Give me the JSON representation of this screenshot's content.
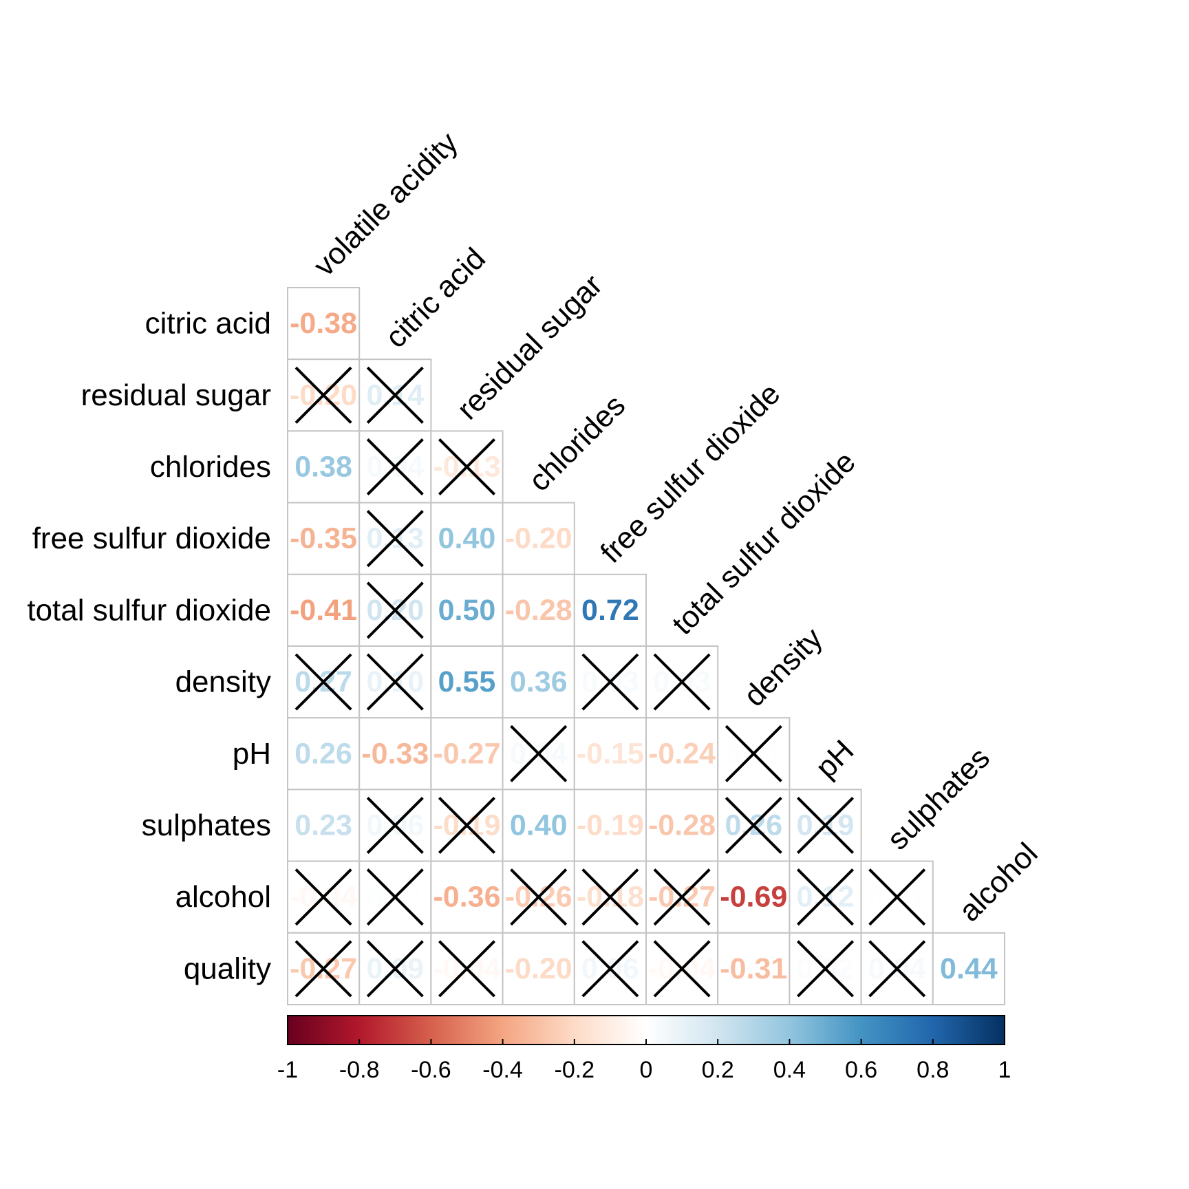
{
  "chart_data": {
    "type": "heatmap",
    "style": "lower-triangle correlation matrix",
    "columns": [
      "volatile acidity",
      "citric acid",
      "residual sugar",
      "chlorides",
      "free sulfur dioxide",
      "total sulfur dioxide",
      "density",
      "pH",
      "sulphates",
      "alcohol"
    ],
    "rows": [
      "citric acid",
      "residual sugar",
      "chlorides",
      "free sulfur dioxide",
      "total sulfur dioxide",
      "density",
      "pH",
      "sulphates",
      "alcohol",
      "quality"
    ],
    "cells": [
      [
        {
          "v": -0.38,
          "x": false
        }
      ],
      [
        {
          "v": -0.2,
          "x": true
        },
        {
          "v": 0.14,
          "x": true
        }
      ],
      [
        {
          "v": 0.38,
          "x": false
        },
        {
          "v": 0.04,
          "x": true
        },
        {
          "v": -0.13,
          "x": true
        }
      ],
      [
        {
          "v": -0.35,
          "x": false
        },
        {
          "v": 0.13,
          "x": true
        },
        {
          "v": 0.4,
          "x": false
        },
        {
          "v": -0.2,
          "x": false
        }
      ],
      [
        {
          "v": -0.41,
          "x": false
        },
        {
          "v": 0.2,
          "x": true
        },
        {
          "v": 0.5,
          "x": false
        },
        {
          "v": -0.28,
          "x": false
        },
        {
          "v": 0.72,
          "x": false
        }
      ],
      [
        {
          "v": 0.27,
          "x": true
        },
        {
          "v": 0.1,
          "x": true
        },
        {
          "v": 0.55,
          "x": false
        },
        {
          "v": 0.36,
          "x": false
        },
        {
          "v": 0.03,
          "x": true
        },
        {
          "v": 0.03,
          "x": true
        }
      ],
      [
        {
          "v": 0.26,
          "x": false
        },
        {
          "v": -0.33,
          "x": false
        },
        {
          "v": -0.27,
          "x": false
        },
        {
          "v": 0.04,
          "x": true
        },
        {
          "v": -0.15,
          "x": false
        },
        {
          "v": -0.24,
          "x": false
        },
        {
          "v": 0.01,
          "x": true
        }
      ],
      [
        {
          "v": 0.23,
          "x": false
        },
        {
          "v": 0.06,
          "x": true
        },
        {
          "v": -0.19,
          "x": true
        },
        {
          "v": 0.4,
          "x": false
        },
        {
          "v": -0.19,
          "x": false
        },
        {
          "v": -0.28,
          "x": false
        },
        {
          "v": 0.26,
          "x": true
        },
        {
          "v": 0.19,
          "x": true
        }
      ],
      [
        {
          "v": -0.04,
          "x": true
        },
        {
          "v": 0.01,
          "x": true
        },
        {
          "v": -0.36,
          "x": false
        },
        {
          "v": -0.26,
          "x": true
        },
        {
          "v": -0.18,
          "x": true
        },
        {
          "v": -0.27,
          "x": true
        },
        {
          "v": -0.69,
          "x": false
        },
        {
          "v": 0.12,
          "x": true
        },
        {
          "v": 0.01,
          "x": true
        }
      ],
      [
        {
          "v": -0.27,
          "x": true
        },
        {
          "v": 0.09,
          "x": true
        },
        {
          "v": -0.04,
          "x": true
        },
        {
          "v": -0.2,
          "x": false
        },
        {
          "v": 0.06,
          "x": true
        },
        {
          "v": -0.04,
          "x": true
        },
        {
          "v": -0.31,
          "x": false
        },
        {
          "v": 0.02,
          "x": true
        },
        {
          "v": 0.04,
          "x": true
        },
        {
          "v": 0.44,
          "x": false
        }
      ]
    ],
    "colorbar": {
      "range": [
        -1,
        1
      ],
      "ticks": [
        "-1",
        "-0.8",
        "-0.6",
        "-0.4",
        "-0.2",
        "0",
        "0.2",
        "0.4",
        "0.6",
        "0.8",
        "1"
      ],
      "palette": [
        "#67001F",
        "#B2182B",
        "#D6604D",
        "#F4A582",
        "#FDDBC7",
        "#FFFFFF",
        "#D1E5F0",
        "#92C5DE",
        "#4393C3",
        "#2166AC",
        "#053061"
      ]
    }
  }
}
